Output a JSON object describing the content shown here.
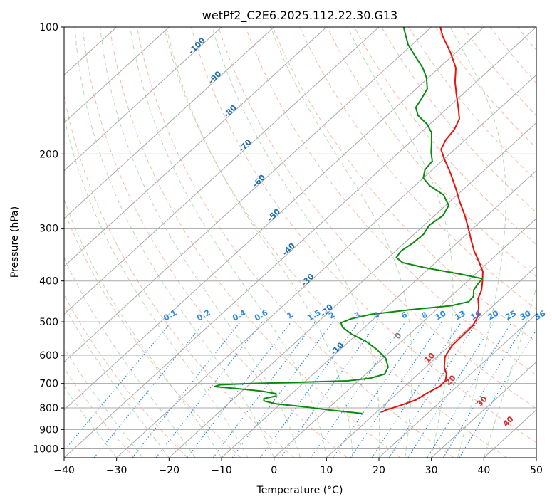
{
  "chart_data": {
    "type": "line",
    "title": "wetPf2_C2E6.2025.112.22.30.G13",
    "xlabel": "Temperature (°C)",
    "ylabel": "Pressure (hPa)",
    "xlim": [
      -40,
      50
    ],
    "ylim": [
      1050,
      100
    ],
    "y_scale": "log",
    "x_ticks": [
      -40,
      -30,
      -20,
      -10,
      0,
      10,
      20,
      30,
      40,
      50
    ],
    "y_ticks": [
      100,
      200,
      300,
      400,
      500,
      600,
      700,
      800,
      900,
      1000
    ],
    "grid": true,
    "skew": true,
    "colors": {
      "temperature": "#e8120c",
      "dewpoint": "#0b8a10",
      "isotherm_grid": "#a9a9a9",
      "dry_adiabat": "#f2a48a",
      "moist_adiabat": "#9fd39a",
      "mixing_ratio": "#2a86e0",
      "mixing_ratio_label": "#2a8ae8",
      "theta_e_label": "#d62a2a",
      "neg_isotherm_label": "#1f6fb3",
      "zero_label": "#808080"
    },
    "series": [
      {
        "color": "#e8120c",
        "points": [
          {
            "p": 820,
            "t": 11.0
          },
          {
            "p": 810,
            "t": 11.3
          },
          {
            "p": 790,
            "t": 13.1
          },
          {
            "p": 765,
            "t": 15.0
          },
          {
            "p": 740,
            "t": 15.6
          },
          {
            "p": 710,
            "t": 16.7
          },
          {
            "p": 690,
            "t": 16.6
          },
          {
            "p": 665,
            "t": 15.4
          },
          {
            "p": 640,
            "t": 13.5
          },
          {
            "p": 605,
            "t": 11.5
          },
          {
            "p": 570,
            "t": 10.5
          },
          {
            "p": 540,
            "t": 10.4
          },
          {
            "p": 510,
            "t": 10.3
          },
          {
            "p": 485,
            "t": 9.3
          },
          {
            "p": 462,
            "t": 7.6
          },
          {
            "p": 440,
            "t": 5.6
          },
          {
            "p": 420,
            "t": 4.5
          },
          {
            "p": 400,
            "t": 2.8
          },
          {
            "p": 380,
            "t": 0.9
          },
          {
            "p": 360,
            "t": -1.9
          },
          {
            "p": 340,
            "t": -5.0
          },
          {
            "p": 320,
            "t": -7.9
          },
          {
            "p": 300,
            "t": -10.9
          },
          {
            "p": 280,
            "t": -14.2
          },
          {
            "p": 260,
            "t": -18.0
          },
          {
            "p": 240,
            "t": -21.9
          },
          {
            "p": 220,
            "t": -26.3
          },
          {
            "p": 205,
            "t": -30.1
          },
          {
            "p": 195,
            "t": -32.6
          },
          {
            "p": 185,
            "t": -33.7
          },
          {
            "p": 175,
            "t": -34.2
          },
          {
            "p": 165,
            "t": -35.5
          },
          {
            "p": 155,
            "t": -38.1
          },
          {
            "p": 145,
            "t": -41.0
          },
          {
            "p": 135,
            "t": -44.0
          },
          {
            "p": 125,
            "t": -46.8
          },
          {
            "p": 115,
            "t": -51.0
          },
          {
            "p": 105,
            "t": -56.0
          },
          {
            "p": 100,
            "t": -58.3
          }
        ]
      },
      {
        "color": "#0b8a10",
        "points": [
          {
            "p": 825,
            "t": 7.6
          },
          {
            "p": 810,
            "t": 1.0
          },
          {
            "p": 795,
            "t": -5.0
          },
          {
            "p": 782,
            "t": -11.0
          },
          {
            "p": 770,
            "t": -13.8
          },
          {
            "p": 760,
            "t": -14.3
          },
          {
            "p": 750,
            "t": -12.5
          },
          {
            "p": 740,
            "t": -13.0
          },
          {
            "p": 730,
            "t": -16.2
          },
          {
            "p": 720,
            "t": -21.5
          },
          {
            "p": 712,
            "t": -26.2
          },
          {
            "p": 705,
            "t": -25.5
          },
          {
            "p": 700,
            "t": -20.0
          },
          {
            "p": 695,
            "t": -10.0
          },
          {
            "p": 690,
            "t": -2.0
          },
          {
            "p": 680,
            "t": 1.8
          },
          {
            "p": 665,
            "t": 3.6
          },
          {
            "p": 640,
            "t": 2.8
          },
          {
            "p": 610,
            "t": 0.5
          },
          {
            "p": 580,
            "t": -3.2
          },
          {
            "p": 555,
            "t": -7.0
          },
          {
            "p": 535,
            "t": -11.0
          },
          {
            "p": 515,
            "t": -14.2
          },
          {
            "p": 503,
            "t": -15.4
          },
          {
            "p": 492,
            "t": -14.4
          },
          {
            "p": 480,
            "t": -11.5
          },
          {
            "p": 468,
            "t": -5.0
          },
          {
            "p": 458,
            "t": 2.0
          },
          {
            "p": 448,
            "t": 4.5
          },
          {
            "p": 435,
            "t": 4.3
          },
          {
            "p": 420,
            "t": 3.0
          },
          {
            "p": 405,
            "t": 2.5
          },
          {
            "p": 395,
            "t": 2.3
          },
          {
            "p": 385,
            "t": -3.0
          },
          {
            "p": 372,
            "t": -11.0
          },
          {
            "p": 362,
            "t": -16.2
          },
          {
            "p": 352,
            "t": -18.5
          },
          {
            "p": 340,
            "t": -19.0
          },
          {
            "p": 325,
            "t": -18.4
          },
          {
            "p": 310,
            "t": -18.2
          },
          {
            "p": 295,
            "t": -19.0
          },
          {
            "p": 280,
            "t": -18.4
          },
          {
            "p": 265,
            "t": -19.4
          },
          {
            "p": 250,
            "t": -22.6
          },
          {
            "p": 238,
            "t": -27.1
          },
          {
            "p": 228,
            "t": -30.0
          },
          {
            "p": 218,
            "t": -31.4
          },
          {
            "p": 208,
            "t": -31.8
          },
          {
            "p": 198,
            "t": -33.9
          },
          {
            "p": 188,
            "t": -35.8
          },
          {
            "p": 178,
            "t": -37.9
          },
          {
            "p": 170,
            "t": -40.5
          },
          {
            "p": 162,
            "t": -44.1
          },
          {
            "p": 155,
            "t": -46.2
          },
          {
            "p": 148,
            "t": -46.9
          },
          {
            "p": 140,
            "t": -47.9
          },
          {
            "p": 132,
            "t": -50.3
          },
          {
            "p": 125,
            "t": -53.1
          },
          {
            "p": 118,
            "t": -56.6
          },
          {
            "p": 110,
            "t": -60.8
          },
          {
            "p": 100,
            "t": -65.3
          }
        ]
      }
    ],
    "isotherm_labels": [
      "-100",
      "-90",
      "-80",
      "-70",
      "-60",
      "-50",
      "-40",
      "-30",
      "-20",
      "-10"
    ],
    "mixing_ratio_labels": [
      "0.1",
      "0.2",
      "0.4",
      "0.6",
      "1",
      "1.5",
      "2",
      "3",
      "4",
      "6",
      "8",
      "10",
      "13",
      "16",
      "20",
      "25",
      "30",
      "36"
    ],
    "theta_e_labels": [
      "0",
      "10",
      "20",
      "30",
      "40"
    ]
  }
}
